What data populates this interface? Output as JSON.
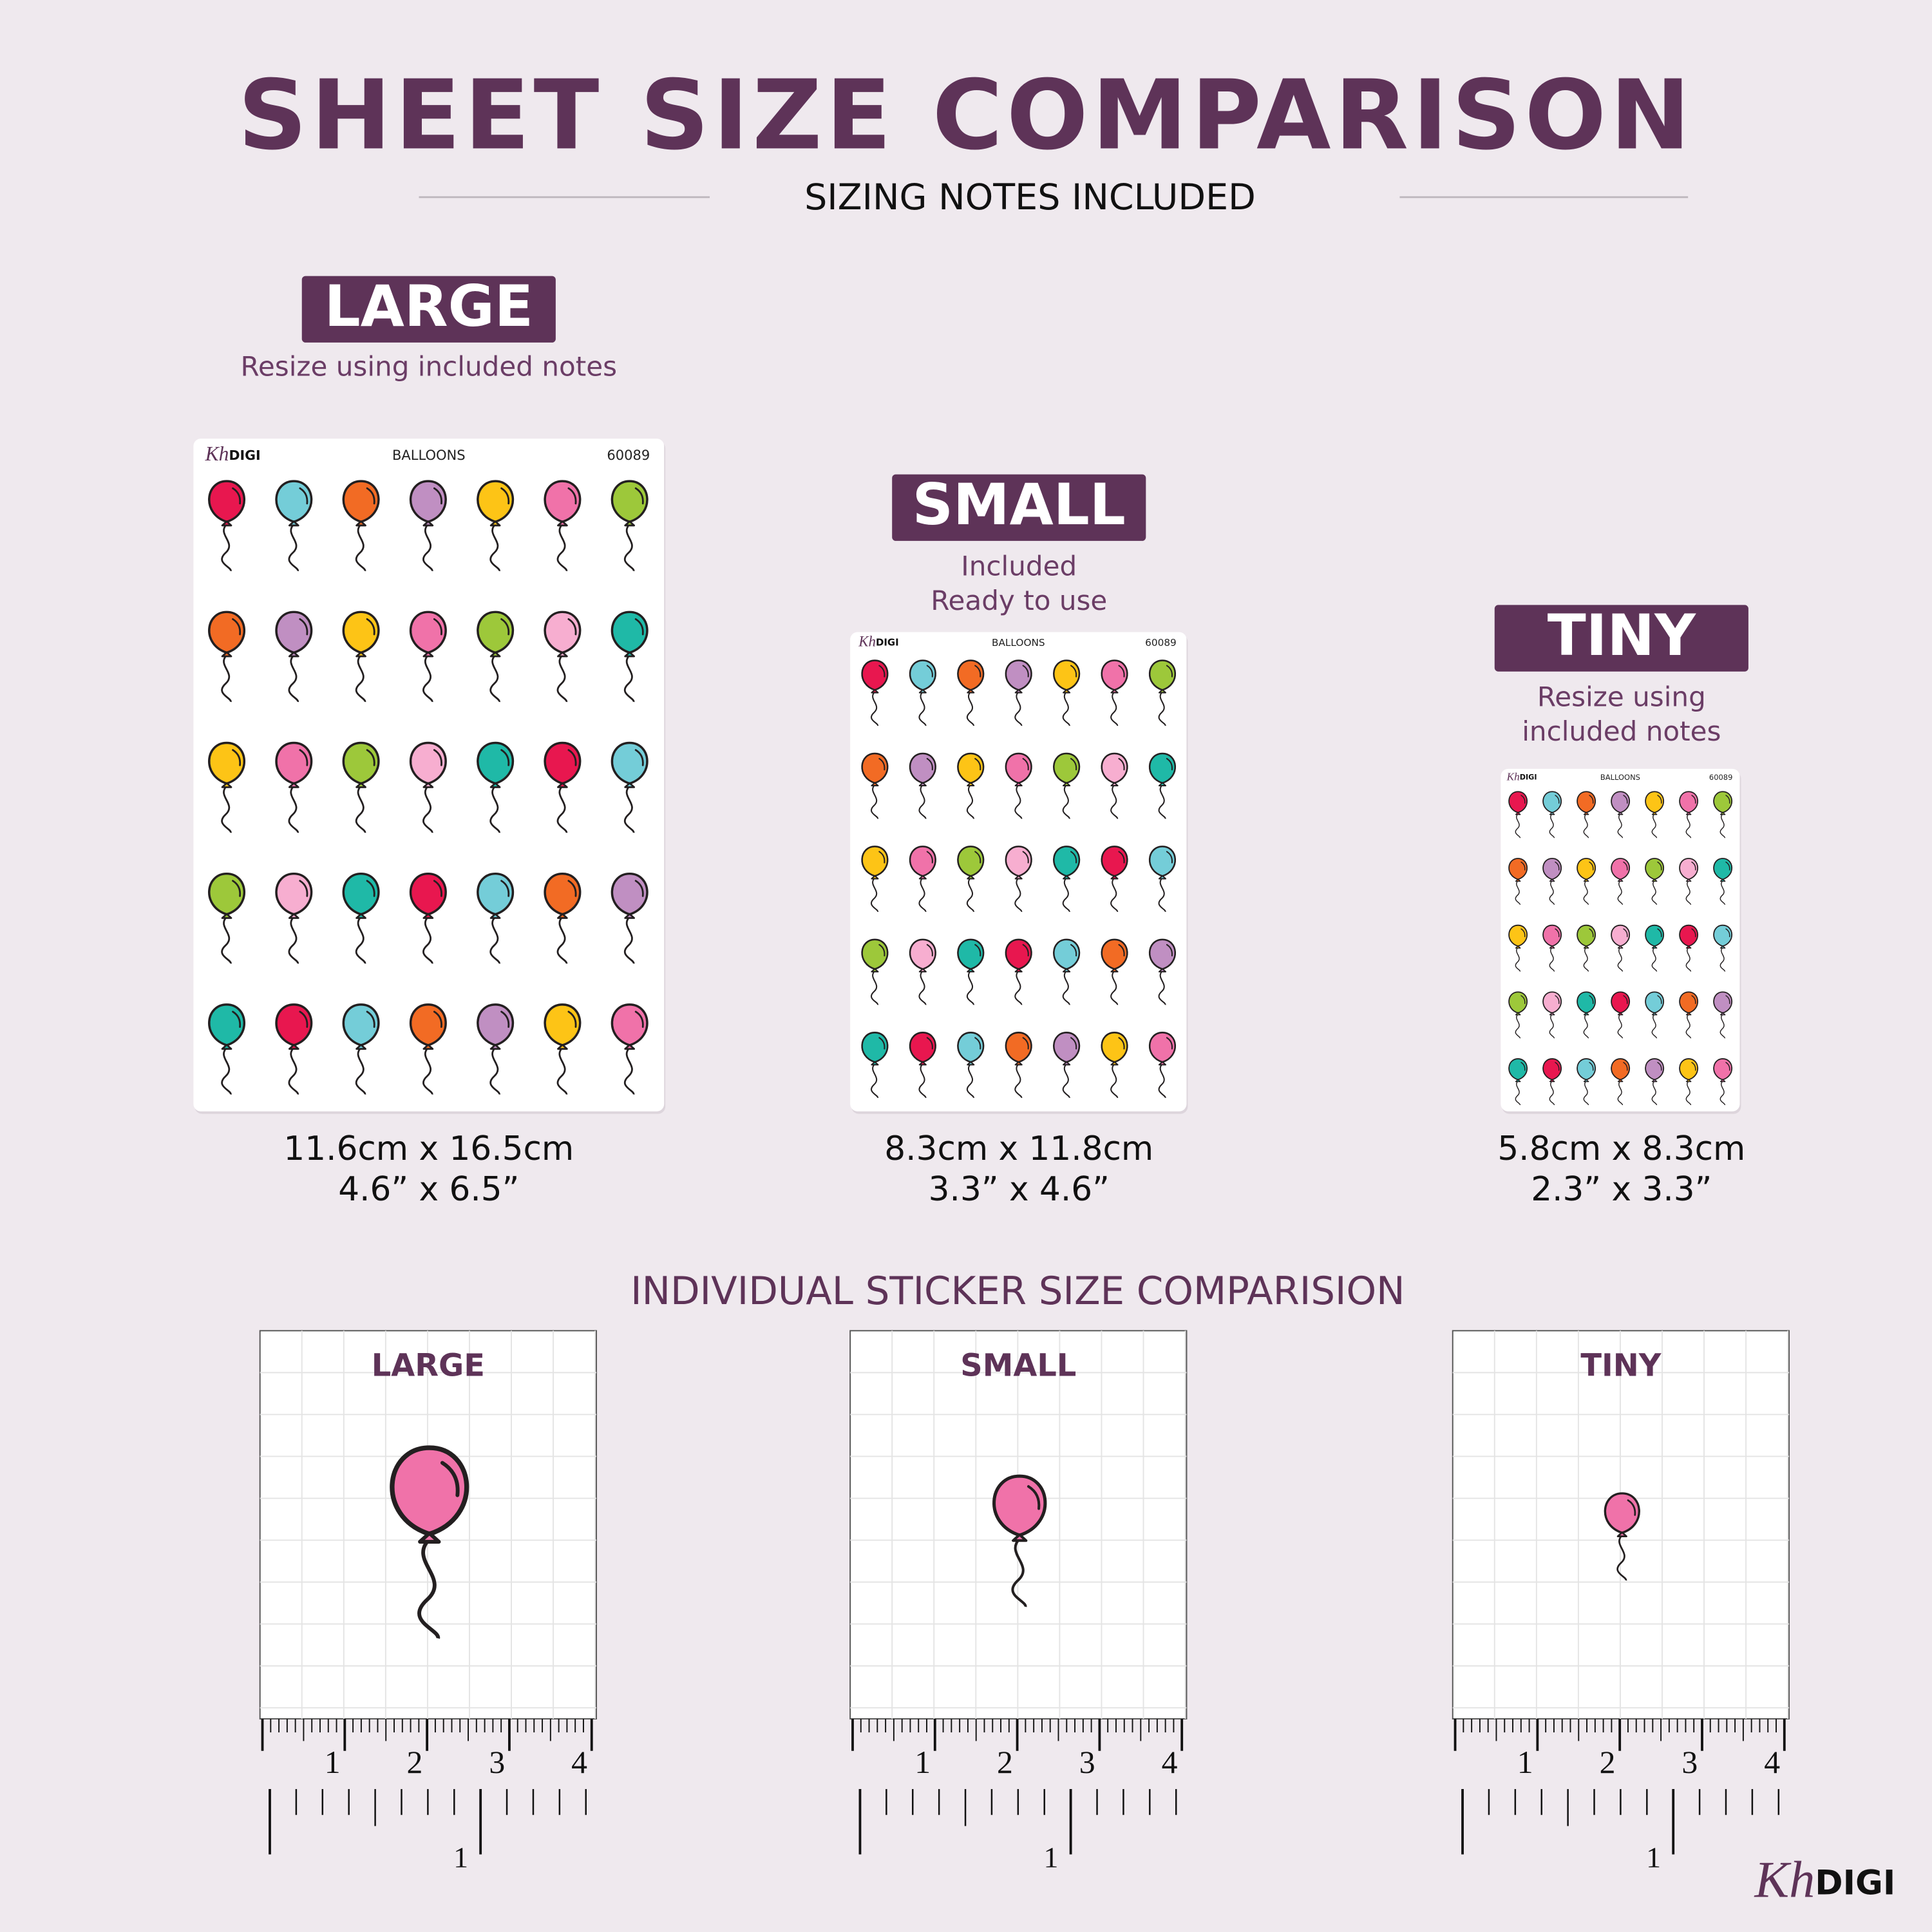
{
  "header": {
    "title": "SHEET SIZE COMPARISON",
    "subtitle": "SIZING NOTES INCLUDED"
  },
  "sheets": [
    {
      "label": "LARGE",
      "note": [
        "Resize using included notes"
      ],
      "size_cm": "11.6cm x 16.5cm",
      "size_in": "4.6” x 6.5”"
    },
    {
      "label": "SMALL",
      "note": [
        "Included",
        "Ready to use"
      ],
      "size_cm": "8.3cm x 11.8cm",
      "size_in": "3.3” x 4.6”"
    },
    {
      "label": "TINY",
      "note": [
        "Resize using",
        "included notes"
      ],
      "size_cm": "5.8cm x 8.3cm",
      "size_in": "2.3” x 3.3”"
    }
  ],
  "sheet_content": {
    "logo_script": "Kh",
    "logo_text": "DIGI",
    "name": "BALLOONS",
    "code": "60089"
  },
  "individual": {
    "title": "INDIVIDUAL STICKER SIZE COMPARISION",
    "boxes": [
      {
        "label": "LARGE"
      },
      {
        "label": "SMALL"
      },
      {
        "label": "TINY"
      }
    ],
    "ruler_cm": [
      "1",
      "2",
      "3",
      "4"
    ],
    "ruler_in": "1"
  },
  "footer_logo": {
    "script": "Kh",
    "text": "DIGI"
  }
}
